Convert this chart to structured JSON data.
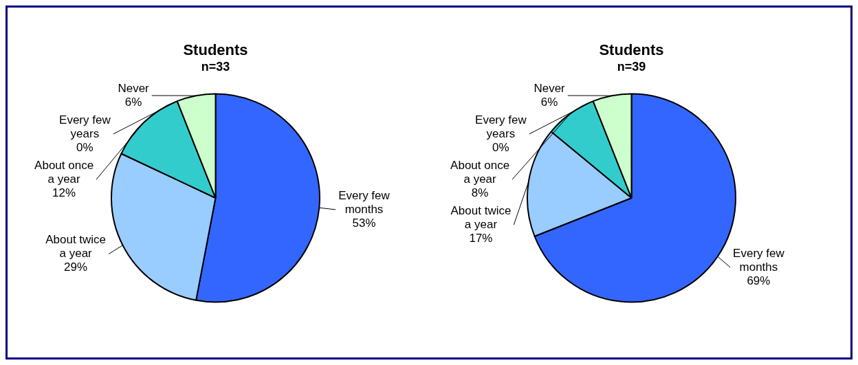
{
  "chart_data": [
    {
      "type": "pie",
      "title": "Students",
      "subtitle": "n=33",
      "categories": [
        "Every few months",
        "About twice a year",
        "About once a year",
        "Every few years",
        "Never"
      ],
      "values": [
        53,
        29,
        12,
        0,
        6
      ],
      "value_labels": [
        "53%",
        "29%",
        "12%",
        "0%",
        "6%"
      ],
      "colors": [
        "#3366ff",
        "#99ccff",
        "#33cccc",
        "#ffff99",
        "#ccffcc"
      ]
    },
    {
      "type": "pie",
      "title": "Students",
      "subtitle": "n=39",
      "categories": [
        "Every few months",
        "About twice a year",
        "About once a year",
        "Every few years",
        "Never"
      ],
      "values": [
        69,
        17,
        8,
        0,
        6
      ],
      "value_labels": [
        "69%",
        "17%",
        "8%",
        "0%",
        "6%"
      ],
      "colors": [
        "#3366ff",
        "#99ccff",
        "#33cccc",
        "#ffff99",
        "#ccffcc"
      ]
    }
  ]
}
